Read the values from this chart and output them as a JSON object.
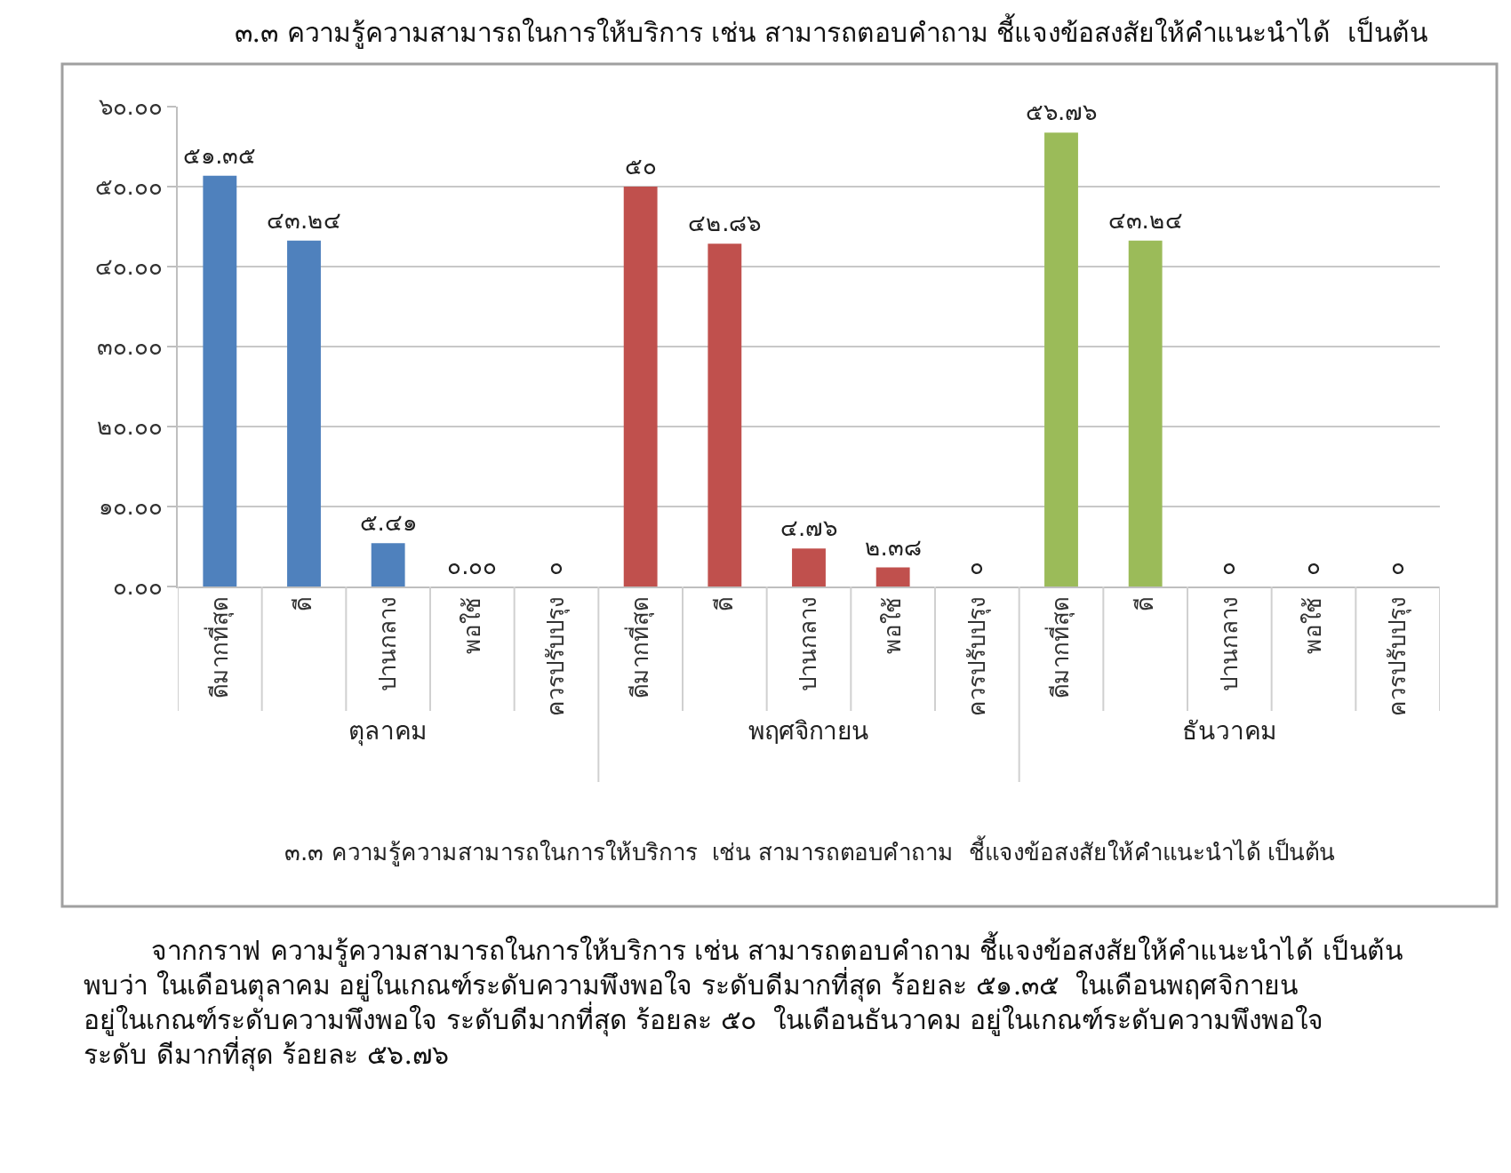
{
  "chart_data": {
    "type": "bar",
    "title": "๓.๓ ความรู้ความสามารถในการให้บริการ เช่น สามารถตอบคำถาม ชี้แจงข้อสงสัยให้คำแนะนำได้  เป็นต้น",
    "categories": [
      "ดีมากที่สุด",
      "ดี",
      "ปานกลาง",
      "พอใช้",
      "ควรปรับปรุง",
      "ดีมากที่สุด",
      "ดี",
      "ปานกลาง",
      "พอใช้",
      "ควรปรับปรุง",
      "ดีมากที่สุด",
      "ดี",
      "ปานกลาง",
      "พอใช้",
      "ควรปรับปรุง"
    ],
    "values": [
      51.35,
      43.24,
      5.41,
      0,
      0,
      50,
      42.86,
      4.76,
      2.38,
      0,
      56.76,
      43.24,
      0,
      0,
      0
    ],
    "colors": [
      "#4f81bd",
      "#4f81bd",
      "#4f81bd",
      "#4f81bd",
      "#4f81bd",
      "#c0504d",
      "#c0504d",
      "#c0504d",
      "#c0504d",
      "#c0504d",
      "#9bbb59",
      "#9bbb59",
      "#9bbb59",
      "#9bbb59",
      "#9bbb59"
    ],
    "value_labels": [
      "๕๑.๓๕",
      "๔๓.๒๔",
      "๕.๔๑",
      "๐.๐๐",
      "๐",
      "๕๐",
      "๔๒.๘๖",
      "๔.๗๖",
      "๒.๓๘",
      "๐",
      "๕๖.๗๖",
      "๔๓.๒๔",
      "๐",
      "๐",
      "๐"
    ],
    "ylim": [
      0,
      60
    ],
    "yticks": [
      {
        "value": 0,
        "label": "๐.๐๐"
      },
      {
        "value": 10,
        "label": "๑๐.๐๐"
      },
      {
        "value": 20,
        "label": "๒๐.๐๐"
      },
      {
        "value": 30,
        "label": "๓๐.๐๐"
      },
      {
        "value": 40,
        "label": "๔๐.๐๐"
      },
      {
        "value": 50,
        "label": "๕๐.๐๐"
      },
      {
        "value": 60,
        "label": "๖๐.๐๐"
      }
    ],
    "grid": "y",
    "annotations": [
      "ตุลาคม",
      "พฤศจิกายน",
      "ธันวาคม",
      "๓.๓ ความรู้ความสามารถในการให้บริการ  เช่น สามารถตอบคำถาม  ชี้แจงข้อสงสัยให้คำแนะนำได้ เป็นต้น",
      "จากกราฟ ความรู้ความสามารถในการให้บริการ เช่น สามารถตอบคำถาม ชี้แจงข้อสงสัยให้คำแนะนำได้ เป็นต้น พบว่า ในเดือนตุลาคม อยู่ในเกณฑ์ระดับความพึงพอใจ ระดับดีมากที่สุด ร้อยละ ๕๑.๓๕  ในเดือนพฤศจิกายน อยู่ในเกณฑ์ระดับความพึงพอใจ ระดับดีมากที่สุด ร้อยละ ๕๐  ในเดือนธันวาคม อยู่ในเกณฑ์ระดับความพึงพอใจ ระดับ ดีมากที่สุด ร้อยละ ๕๖.๗๖"
    ]
  }
}
